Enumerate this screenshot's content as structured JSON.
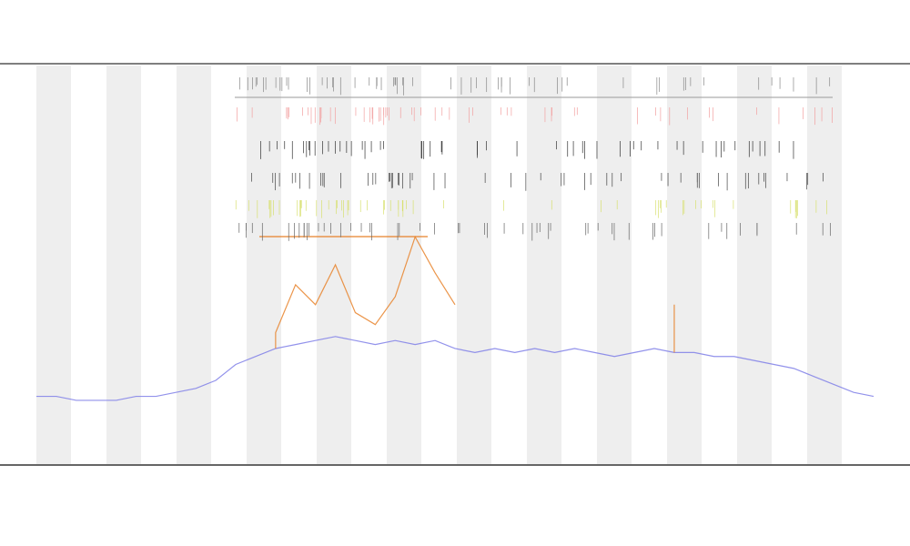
{
  "chart_data": {
    "type": "line",
    "ylim": [
      0,
      100
    ],
    "series": [
      {
        "color": "#7f7fe8",
        "values": [
          17,
          17,
          16,
          16,
          16,
          17,
          17,
          18,
          19,
          21,
          25,
          27,
          29,
          30,
          31,
          32,
          31,
          30,
          31,
          30,
          31,
          29,
          28,
          29,
          28,
          29,
          28,
          29,
          28,
          27,
          28,
          29,
          28,
          28,
          27,
          27,
          26,
          25,
          24,
          22,
          20,
          18,
          17
        ]
      },
      {
        "color": "#e8822a",
        "values": [
          null,
          null,
          null,
          null,
          null,
          null,
          null,
          null,
          null,
          null,
          null,
          null,
          33,
          45,
          40,
          50,
          38,
          35,
          42,
          57,
          48,
          40,
          null,
          null,
          null,
          null,
          null,
          null,
          null,
          null,
          null,
          null,
          40,
          null,
          null,
          null,
          null,
          null,
          null,
          null,
          null,
          null,
          null
        ]
      }
    ]
  }
}
